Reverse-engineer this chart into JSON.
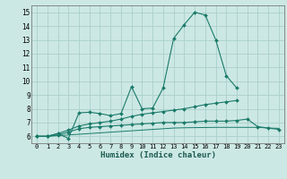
{
  "xlabel": "Humidex (Indice chaleur)",
  "bg_color": "#cce8e4",
  "grid_color": "#aacfcc",
  "line_color": "#1a7a6a",
  "xlim": [
    -0.5,
    23.5
  ],
  "ylim": [
    5.5,
    15.5
  ],
  "xticks": [
    0,
    1,
    2,
    3,
    4,
    5,
    6,
    7,
    8,
    9,
    10,
    11,
    12,
    13,
    14,
    15,
    16,
    17,
    18,
    19,
    20,
    21,
    22,
    23
  ],
  "yticks": [
    6,
    7,
    8,
    9,
    10,
    11,
    12,
    13,
    14,
    15
  ],
  "lines": [
    {
      "x": [
        0,
        1,
        2,
        3,
        4,
        5,
        6,
        7,
        8,
        9,
        10,
        11,
        12,
        13,
        14,
        15,
        16,
        17,
        18,
        19
      ],
      "y": [
        6.0,
        6.0,
        6.2,
        5.85,
        7.7,
        7.75,
        7.65,
        7.5,
        7.65,
        9.6,
        8.0,
        8.05,
        9.5,
        13.1,
        14.1,
        15.0,
        14.8,
        13.0,
        10.4,
        9.5
      ],
      "marker": true
    },
    {
      "x": [
        0,
        1,
        2,
        3,
        4,
        5,
        6,
        7,
        8,
        9,
        10,
        11,
        12,
        13,
        14,
        15,
        16,
        17,
        18,
        19,
        20,
        21,
        22,
        23
      ],
      "y": [
        6.0,
        6.0,
        6.2,
        6.45,
        6.75,
        6.9,
        7.0,
        7.1,
        7.25,
        7.45,
        7.6,
        7.7,
        7.8,
        7.9,
        8.0,
        8.15,
        8.3,
        8.4,
        8.5,
        8.6,
        null,
        null,
        null,
        null
      ],
      "marker": true
    },
    {
      "x": [
        0,
        1,
        2,
        3,
        4,
        5,
        6,
        7,
        8,
        9,
        10,
        11,
        12,
        13,
        14,
        15,
        16,
        17,
        18,
        19,
        20,
        21,
        22,
        23
      ],
      "y": [
        6.0,
        6.0,
        6.1,
        6.3,
        6.55,
        6.65,
        6.7,
        6.75,
        6.8,
        6.85,
        6.9,
        6.95,
        7.0,
        7.0,
        7.0,
        7.05,
        7.1,
        7.1,
        7.1,
        7.15,
        7.25,
        6.7,
        6.6,
        6.5
      ],
      "marker": true
    },
    {
      "x": [
        0,
        1,
        2,
        3,
        4,
        5,
        6,
        7,
        8,
        9,
        10,
        11,
        12,
        13,
        14,
        15,
        16,
        17,
        18,
        19,
        20,
        21,
        22,
        23
      ],
      "y": [
        6.0,
        6.0,
        6.05,
        6.1,
        6.15,
        6.2,
        6.25,
        6.3,
        6.35,
        6.4,
        6.45,
        6.5,
        6.55,
        6.6,
        6.62,
        6.63,
        6.64,
        6.65,
        6.65,
        6.65,
        6.65,
        6.65,
        6.6,
        6.58
      ],
      "marker": false
    }
  ]
}
